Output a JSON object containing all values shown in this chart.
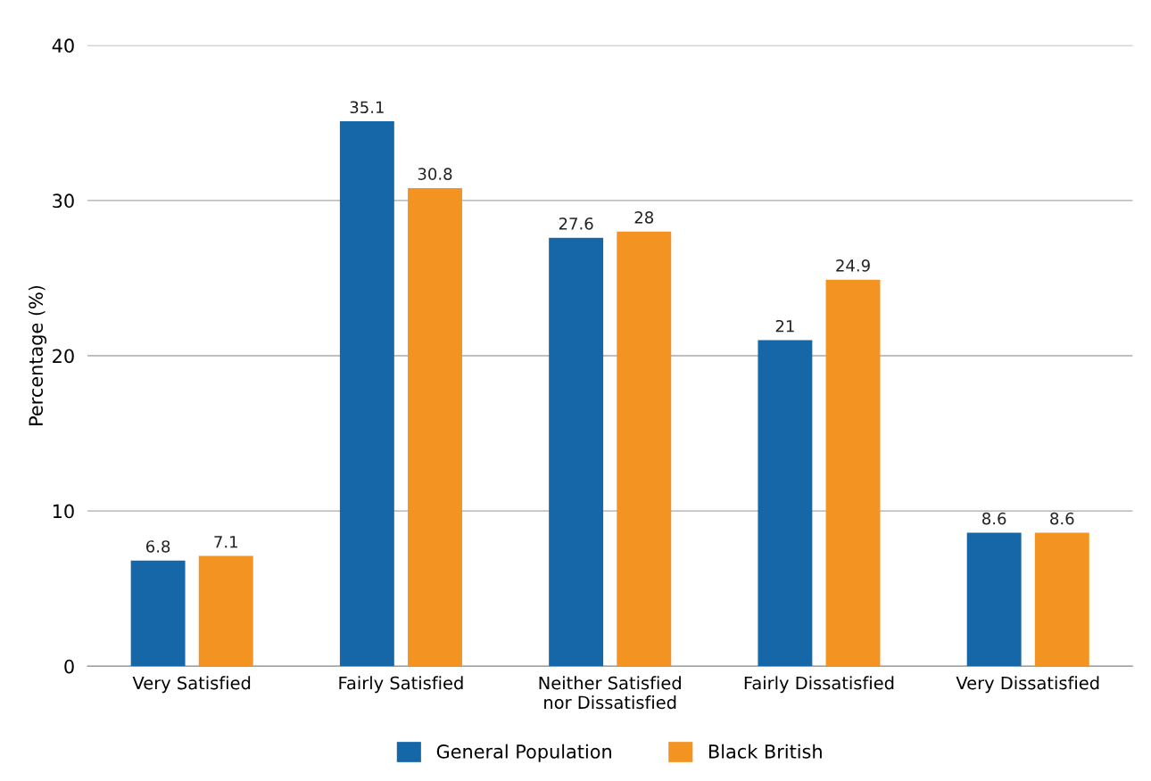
{
  "chart_data": {
    "type": "bar",
    "ylabel": "Percentage (%)",
    "categories": [
      "Very Satisfied",
      "Fairly Satisfied",
      "Neither Satisfied\nnor Dissatisfied",
      "Fairly Dissatisfied",
      "Very Dissatisfied"
    ],
    "series": [
      {
        "name": "General Population",
        "color": "#1667a8",
        "values": [
          6.8,
          35.1,
          27.6,
          21,
          8.6
        ]
      },
      {
        "name": "Black British",
        "color": "#f39321",
        "values": [
          7.1,
          30.8,
          28,
          24.9,
          8.6
        ]
      }
    ],
    "ylim": [
      0,
      40
    ],
    "yticks": [
      0,
      10,
      20,
      30,
      40
    ],
    "grid": "y",
    "legend": "bottom",
    "data_labels": true
  }
}
